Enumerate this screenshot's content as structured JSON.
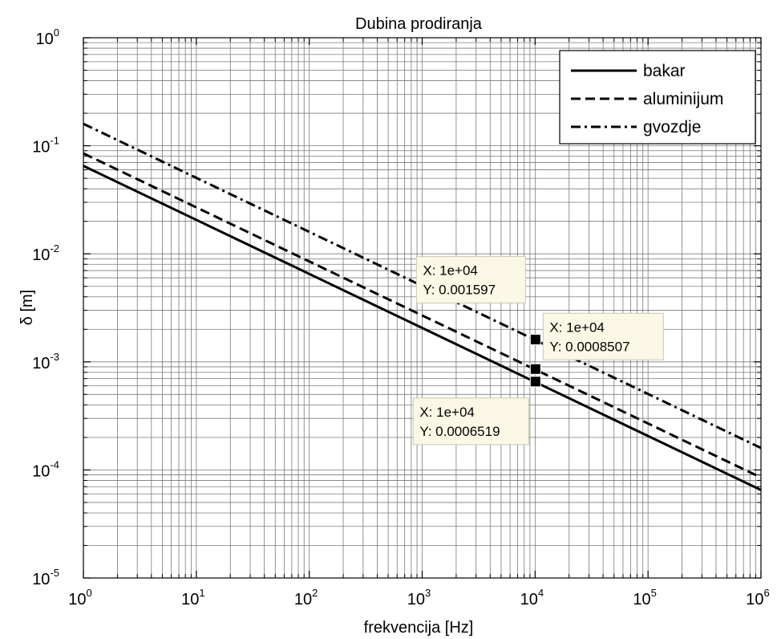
{
  "chart_data": {
    "type": "line",
    "title": "Dubina prodiranja",
    "xlabel": "frekvencija [Hz]",
    "ylabel": "δ [m]",
    "xscale": "log",
    "yscale": "log",
    "xlim": [
      1,
      1000000
    ],
    "ylim": [
      1e-05,
      1
    ],
    "grid": true,
    "legend_position": "top-right",
    "x_ticks": [
      {
        "base": "10",
        "exp": "0"
      },
      {
        "base": "10",
        "exp": "1"
      },
      {
        "base": "10",
        "exp": "2"
      },
      {
        "base": "10",
        "exp": "3"
      },
      {
        "base": "10",
        "exp": "4"
      },
      {
        "base": "10",
        "exp": "5"
      },
      {
        "base": "10",
        "exp": "6"
      }
    ],
    "y_ticks": [
      {
        "base": "10",
        "exp": "-5"
      },
      {
        "base": "10",
        "exp": "-4"
      },
      {
        "base": "10",
        "exp": "-3"
      },
      {
        "base": "10",
        "exp": "-2"
      },
      {
        "base": "10",
        "exp": "-1"
      },
      {
        "base": "10",
        "exp": "0"
      }
    ],
    "series": [
      {
        "name": "bakar",
        "line_style": "solid",
        "x": [
          1,
          1000000
        ],
        "y": [
          0.06519,
          6.519e-05
        ]
      },
      {
        "name": "aluminijum",
        "line_style": "dashed",
        "x": [
          1,
          1000000
        ],
        "y": [
          0.08507,
          8.507e-05
        ]
      },
      {
        "name": "gvozdje",
        "line_style": "dashdot",
        "x": [
          1,
          1000000
        ],
        "y": [
          0.1597,
          0.0001597
        ]
      }
    ],
    "datatips": [
      {
        "series": "gvozdje",
        "x": 10000,
        "y": 0.001597,
        "line1": "X: 1e+04",
        "line2": "Y: 0.001597",
        "placement": "upper-left"
      },
      {
        "series": "aluminijum",
        "x": 10000,
        "y": 0.0008507,
        "line1": "X: 1e+04",
        "line2": "Y: 0.0008507",
        "placement": "upper-right"
      },
      {
        "series": "bakar",
        "x": 10000,
        "y": 0.0006519,
        "line1": "X: 1e+04",
        "line2": "Y: 0.0006519",
        "placement": "lower-left"
      }
    ]
  }
}
